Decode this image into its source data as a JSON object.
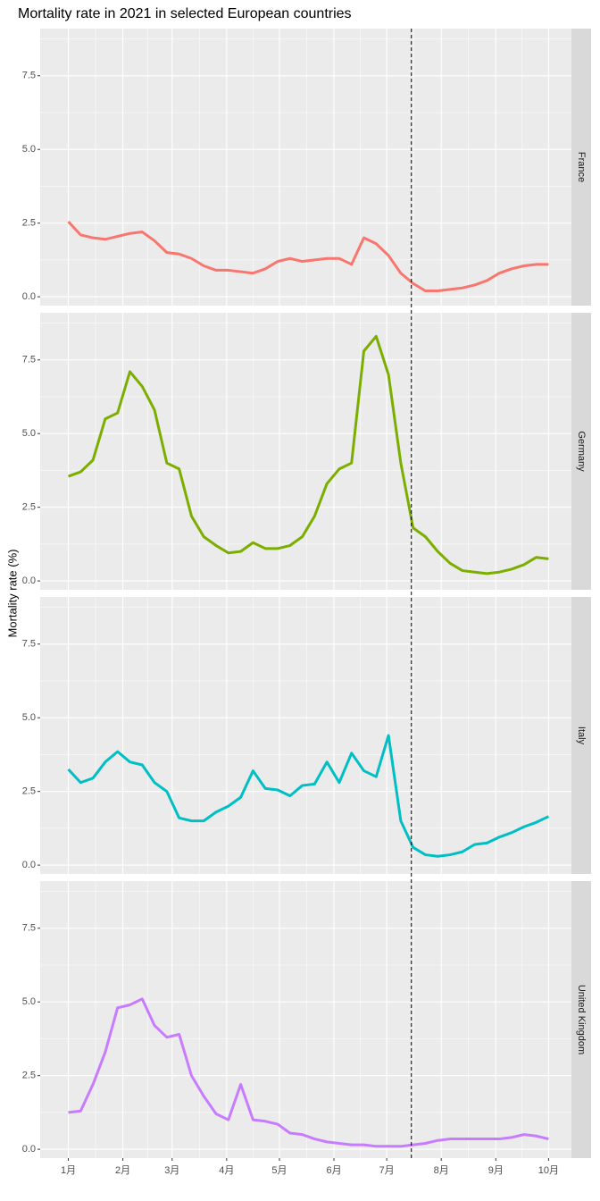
{
  "chart_data": {
    "type": "line",
    "title": "Mortality rate in 2021 in selected European countries",
    "ylabel": "Mortality rate (%)",
    "x": [
      1,
      8,
      15,
      22,
      29,
      36,
      43,
      50,
      57,
      64,
      71,
      78,
      85,
      92,
      99,
      106,
      113,
      120,
      127,
      134,
      141,
      148,
      155,
      162,
      169,
      176,
      183,
      190,
      197,
      204,
      211,
      218,
      225,
      232,
      239,
      246,
      253,
      260,
      267,
      274
    ],
    "xlim": [
      -15,
      287
    ],
    "xticks": [
      {
        "value": 1,
        "label": "1月"
      },
      {
        "value": 32,
        "label": "2月"
      },
      {
        "value": 60,
        "label": "3月"
      },
      {
        "value": 91,
        "label": "4月"
      },
      {
        "value": 121,
        "label": "5月"
      },
      {
        "value": 152,
        "label": "6月"
      },
      {
        "value": 182,
        "label": "7月"
      },
      {
        "value": 213,
        "label": "8月"
      },
      {
        "value": 244,
        "label": "9月"
      },
      {
        "value": 274,
        "label": "10月"
      }
    ],
    "ylim": [
      -0.3,
      9.1
    ],
    "yticks": [
      {
        "value": 0,
        "label": "0.0"
      },
      2.5,
      {
        "value": 5,
        "label": "5.0"
      },
      7.5
    ],
    "vline": 196,
    "grid": true,
    "series": [
      {
        "name": "France",
        "color": "#F8766D",
        "values": [
          2.55,
          2.1,
          2.0,
          1.95,
          2.05,
          2.15,
          2.2,
          1.9,
          1.5,
          1.45,
          1.3,
          1.05,
          0.9,
          0.9,
          0.85,
          0.8,
          0.95,
          1.2,
          1.3,
          1.2,
          1.25,
          1.3,
          1.3,
          1.1,
          2.0,
          1.8,
          1.4,
          0.8,
          0.45,
          0.2,
          0.2,
          0.25,
          0.3,
          0.4,
          0.55,
          0.8,
          0.95,
          1.05,
          1.1,
          1.1
        ]
      },
      {
        "name": "Germany",
        "color": "#7CAE00",
        "values": [
          3.55,
          3.7,
          4.1,
          5.5,
          5.7,
          7.1,
          6.6,
          5.8,
          4.0,
          3.8,
          2.2,
          1.5,
          1.2,
          0.95,
          1.0,
          1.3,
          1.1,
          1.1,
          1.2,
          1.5,
          2.2,
          3.3,
          3.8,
          4.0,
          7.8,
          8.3,
          7.0,
          4.0,
          1.8,
          1.5,
          1.0,
          0.6,
          0.35,
          0.3,
          0.25,
          0.3,
          0.4,
          0.55,
          0.8,
          0.75
        ]
      },
      {
        "name": "Italy",
        "color": "#00BFC4",
        "values": [
          3.25,
          2.8,
          2.95,
          3.5,
          3.85,
          3.5,
          3.4,
          2.8,
          2.5,
          1.6,
          1.5,
          1.5,
          1.8,
          2.0,
          2.3,
          3.2,
          2.6,
          2.55,
          2.35,
          2.7,
          2.75,
          3.5,
          2.8,
          3.8,
          3.2,
          3.0,
          4.4,
          1.5,
          0.6,
          0.35,
          0.3,
          0.35,
          0.45,
          0.7,
          0.75,
          0.95,
          1.1,
          1.3,
          1.45,
          1.65
        ]
      },
      {
        "name": "United Kingdom",
        "color": "#C77CFF",
        "values": [
          1.25,
          1.3,
          2.2,
          3.3,
          4.8,
          4.9,
          5.1,
          4.2,
          3.8,
          3.9,
          2.5,
          1.8,
          1.2,
          1.0,
          2.2,
          1.0,
          0.95,
          0.85,
          0.55,
          0.5,
          0.35,
          0.25,
          0.2,
          0.15,
          0.15,
          0.1,
          0.1,
          0.1,
          0.15,
          0.2,
          0.3,
          0.35,
          0.35,
          0.35,
          0.35,
          0.35,
          0.4,
          0.5,
          0.45,
          0.35
        ]
      }
    ]
  }
}
